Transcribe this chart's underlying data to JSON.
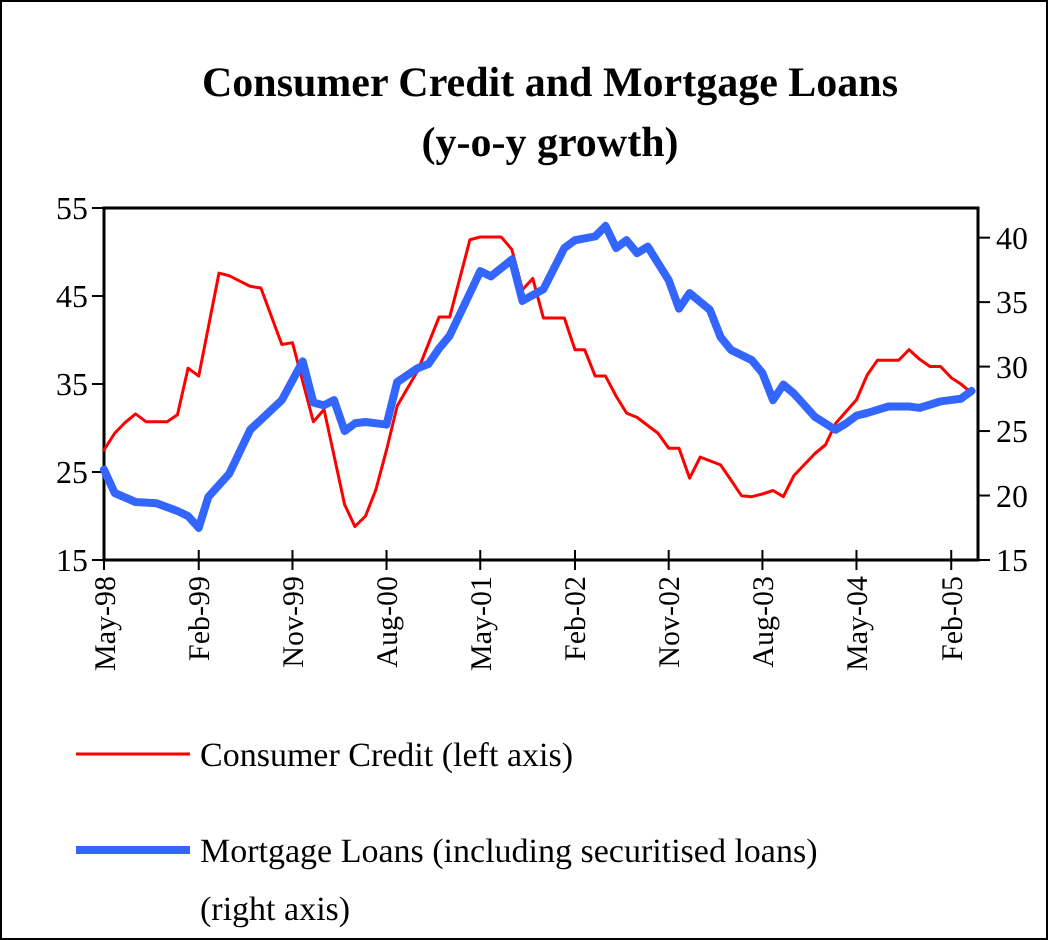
{
  "chart_data": {
    "type": "line",
    "title": "Consumer Credit and Mortgage Loans",
    "subtitle": "(y-o-y growth)",
    "xlim": [
      "1998-05",
      "2005-04-20"
    ],
    "xticks": [
      {
        "value": "1998-05",
        "label": "May-98"
      },
      {
        "value": "1999-02",
        "label": "Feb-99"
      },
      {
        "value": "1999-11",
        "label": "Nov-99"
      },
      {
        "value": "2000-08",
        "label": "Aug-00"
      },
      {
        "value": "2001-05",
        "label": "May-01"
      },
      {
        "value": "2002-02",
        "label": "Feb-02"
      },
      {
        "value": "2002-11",
        "label": "Nov-02"
      },
      {
        "value": "2003-08",
        "label": "Aug-03"
      },
      {
        "value": "2004-05",
        "label": "May-04"
      },
      {
        "value": "2005-02",
        "label": "Feb-05"
      }
    ],
    "ylim": [
      15,
      55
    ],
    "yticks": [
      15,
      25,
      35,
      45,
      55
    ],
    "y2lim": [
      15,
      42.3
    ],
    "y2ticks": [
      15,
      20,
      25,
      30,
      35,
      40
    ],
    "legend": "bottom",
    "grid": false,
    "line_style": "solid",
    "marker": "none",
    "series": [
      {
        "name": "Consumer Credit (left axis)",
        "color": "#ff0000",
        "x": [
          "1998-05",
          "1998-06",
          "1998-07",
          "1998-08",
          "1998-09",
          "1998-11",
          "1998-12",
          "1999-01",
          "1999-02",
          "1999-04",
          "1999-05",
          "1999-07",
          "1999-08",
          "1999-10",
          "1999-11",
          "2000-01",
          "2000-02",
          "2000-04",
          "2000-05",
          "2000-06",
          "2000-07",
          "2000-08",
          "2000-09",
          "2000-11",
          "2001-01",
          "2001-02",
          "2001-04",
          "2001-05",
          "2001-07",
          "2001-08",
          "2001-09",
          "2001-10",
          "2001-11",
          "2002-01",
          "2002-02",
          "2002-03",
          "2002-04",
          "2002-05",
          "2002-06",
          "2002-07",
          "2002-08",
          "2002-10",
          "2002-11",
          "2002-12",
          "2003-01",
          "2003-02",
          "2003-04",
          "2003-05",
          "2003-06",
          "2003-07",
          "2003-08",
          "2003-09",
          "2003-10",
          "2003-11",
          "2004-01",
          "2004-02",
          "2004-03",
          "2004-05",
          "2004-06",
          "2004-07",
          "2004-09",
          "2004-10",
          "2004-11",
          "2004-12",
          "2005-01",
          "2005-02",
          "2005-03",
          "2005-04"
        ],
        "values": [
          27.5,
          29.4,
          30.6,
          31.6,
          30.7,
          30.7,
          31.5,
          36.8,
          35.9,
          47.6,
          47.3,
          46.1,
          45.9,
          39.5,
          39.7,
          30.7,
          32.1,
          21.3,
          18.8,
          20,
          23.0,
          27.5,
          32.5,
          36.6,
          42.6,
          42.6,
          51.4,
          51.7,
          51.7,
          50.3,
          45.7,
          47.0,
          42.5,
          42.5,
          38.9,
          38.9,
          35.9,
          35.9,
          33.6,
          31.7,
          31.2,
          29.4,
          27.7,
          27.7,
          24.3,
          26.7,
          25.8,
          24.1,
          22.3,
          22.2,
          22.5,
          22.9,
          22.2,
          24.6,
          27.1,
          28.1,
          30.5,
          33.2,
          36,
          37.7,
          37.7,
          38.9,
          37.8,
          37.0,
          37.0,
          35.7,
          35.0,
          34.0
        ]
      },
      {
        "name": "Mortgage Loans (including securitised loans) (right axis)",
        "color": "#3366ff",
        "axis": "y2",
        "x": [
          "1998-05",
          "1998-06",
          "1998-08",
          "1998-10",
          "1998-12",
          "1999-01",
          "1999-02",
          "1999-03",
          "1999-05",
          "1999-07",
          "1999-10",
          "1999-12",
          "2000-01",
          "2000-02",
          "2000-03",
          "2000-04",
          "2000-05",
          "2000-06",
          "2000-08",
          "2000-09",
          "2000-11",
          "2000-12",
          "2001-01",
          "2001-02",
          "2001-04",
          "2001-05",
          "2001-06",
          "2001-08",
          "2001-09",
          "2001-11",
          "2002-01",
          "2002-02",
          "2002-04",
          "2002-05",
          "2002-06",
          "2002-07",
          "2002-08",
          "2002-09",
          "2002-11",
          "2002-12",
          "2003-01",
          "2003-03",
          "2003-04",
          "2003-05",
          "2003-07",
          "2003-08",
          "2003-09",
          "2003-10",
          "2003-11",
          "2004-01",
          "2004-03",
          "2004-04",
          "2004-05",
          "2004-06",
          "2004-08",
          "2004-10",
          "2004-11",
          "2005-01",
          "2005-03",
          "2005-04"
        ],
        "values": [
          22.0,
          20.2,
          19.5,
          19.4,
          18.8,
          18.4,
          17.5,
          19.9,
          21.7,
          25.1,
          27.4,
          30.4,
          27.2,
          27.0,
          27.4,
          25.0,
          25.6,
          25.7,
          25.5,
          28.8,
          29.9,
          30.2,
          31.4,
          32.4,
          35.7,
          37.4,
          37.0,
          38.3,
          35.1,
          36.0,
          39.2,
          39.8,
          40.1,
          40.9,
          39.2,
          39.8,
          38.8,
          39.3,
          36.7,
          34.5,
          35.7,
          34.4,
          32.3,
          31.3,
          30.5,
          29.5,
          27.4,
          28.6,
          27.9,
          26.1,
          25.1,
          25.6,
          26.2,
          26.4,
          26.9,
          26.9,
          26.8,
          27.3,
          27.5,
          28.1
        ]
      }
    ]
  }
}
